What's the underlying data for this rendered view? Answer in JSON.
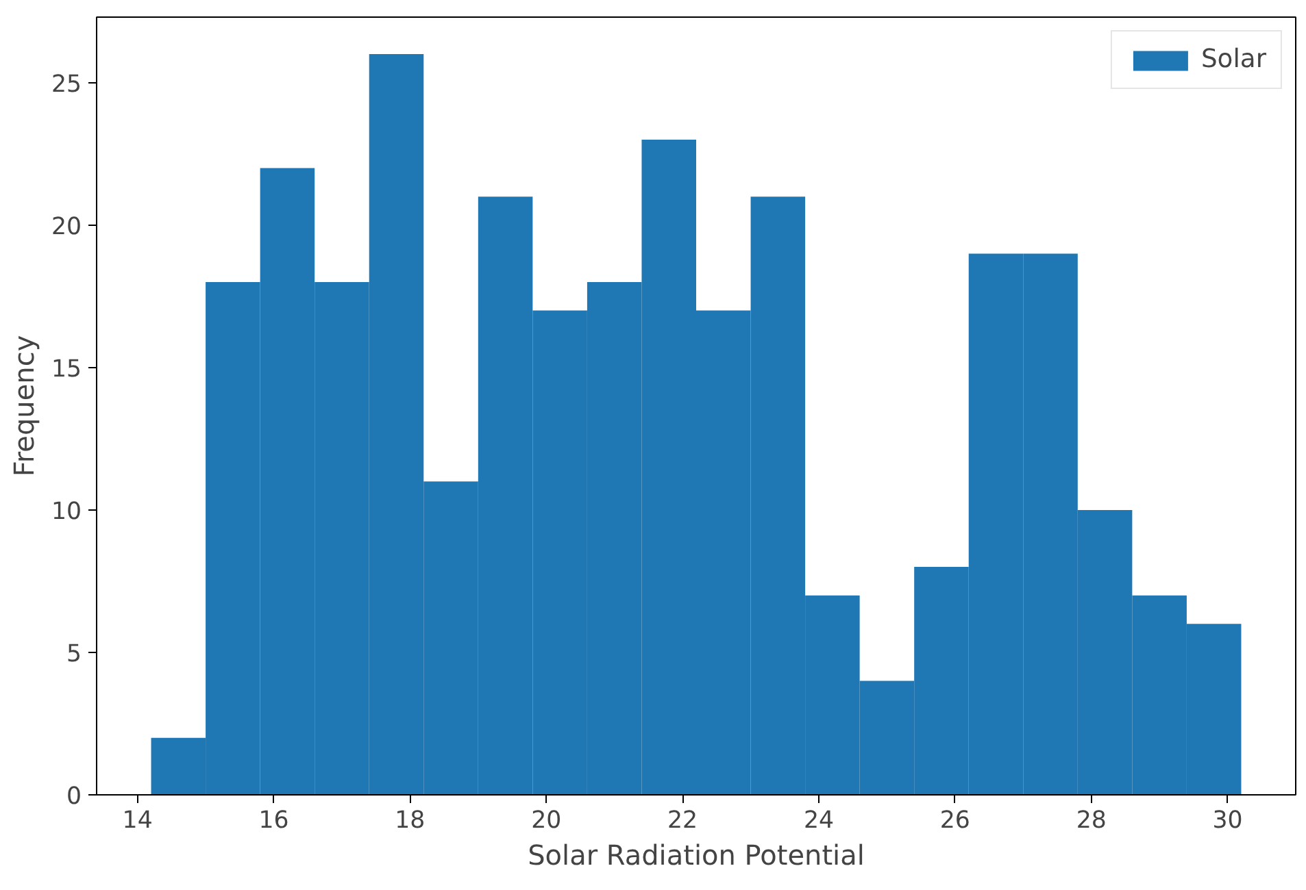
{
  "chart_data": {
    "type": "histogram",
    "xlabel": "Solar Radiation Potential",
    "ylabel": "Frequency",
    "bins": [
      14.2,
      15.0,
      15.8,
      16.6,
      17.4,
      18.2,
      19.0,
      19.8,
      20.6,
      21.4,
      22.2,
      23.0,
      23.8,
      24.6,
      25.4,
      26.2,
      27.0,
      27.8,
      28.6,
      29.4,
      30.2
    ],
    "series": [
      {
        "name": "Solar",
        "color": "#1f77b4",
        "values": [
          2,
          18,
          22,
          18,
          26,
          11,
          21,
          17,
          18,
          23,
          17,
          21,
          7,
          4,
          8,
          19,
          19,
          10,
          7,
          6
        ]
      }
    ],
    "xlim": [
      13.4,
      31.0
    ],
    "ylim": [
      0,
      27.3
    ],
    "xticks": [
      14,
      16,
      18,
      20,
      22,
      24,
      26,
      28,
      30
    ],
    "yticks": [
      0,
      5,
      10,
      15,
      20,
      25
    ],
    "legend": "top right",
    "grid": false
  }
}
